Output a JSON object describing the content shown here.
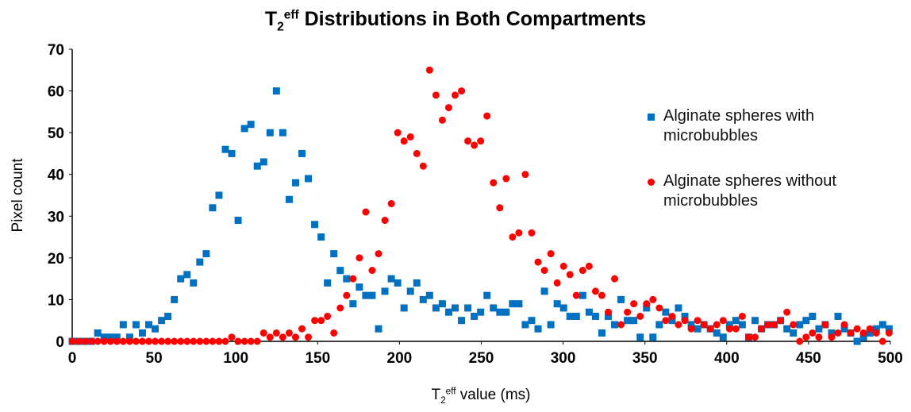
{
  "chart_data": {
    "type": "scatter",
    "title": [
      "T",
      "2",
      "eff",
      " Distributions in Both Compartments"
    ],
    "xlabel": [
      "T",
      "2",
      "eff",
      " value (ms)"
    ],
    "ylabel": "Pixel count",
    "xlim": [
      0,
      500
    ],
    "xticks": [
      0,
      50,
      100,
      150,
      200,
      250,
      300,
      350,
      400,
      450,
      500
    ],
    "ylim": [
      0,
      70
    ],
    "yticks": [
      0,
      10,
      20,
      30,
      40,
      50,
      60,
      70
    ],
    "grid": false,
    "legend": "upper right",
    "x": [
      0,
      3.9,
      7.8,
      11.7,
      15.6,
      19.5,
      23.4,
      27.3,
      31.2,
      35.1,
      39,
      42.9,
      46.8,
      50.7,
      54.6,
      58.5,
      62.4,
      66.3,
      70.2,
      74.1,
      78,
      81.9,
      85.8,
      89.7,
      93.6,
      97.5,
      101.4,
      105.3,
      109.2,
      113.1,
      117,
      120.9,
      124.8,
      128.7,
      132.6,
      136.5,
      140.4,
      144.3,
      148.2,
      152.1,
      156,
      159.9,
      163.8,
      167.7,
      171.6,
      175.5,
      179.4,
      183.3,
      187.2,
      191.1,
      195,
      198.9,
      202.8,
      206.7,
      210.6,
      214.5,
      218.4,
      222.3,
      226.2,
      230.1,
      234,
      237.9,
      241.8,
      245.7,
      249.6,
      253.5,
      257.4,
      261.3,
      265.2,
      269.1,
      273,
      276.9,
      280.8,
      284.7,
      288.6,
      292.5,
      296.4,
      300.3,
      304.2,
      308.1,
      312,
      315.9,
      319.8,
      323.7,
      327.6,
      331.5,
      335.4,
      339.3,
      343.2,
      347.1,
      351,
      354.9,
      358.8,
      362.7,
      366.6,
      370.5,
      374.4,
      378.3,
      382.2,
      386.1,
      390,
      393.9,
      397.8,
      401.7,
      405.6,
      409.5,
      413.4,
      417.3,
      421.2,
      425.1,
      429,
      432.9,
      436.8,
      440.7,
      444.6,
      448.5,
      452.4,
      456.3,
      460.2,
      464.1,
      468,
      471.9,
      475.8,
      479.7,
      483.6,
      487.5,
      491.4,
      495.3,
      499.2
    ],
    "series": [
      {
        "name": "Alginate spheres with microbubbles",
        "color": "#0070c0",
        "marker": "square",
        "values": [
          0,
          0,
          0,
          0,
          2,
          1,
          1,
          1,
          4,
          1,
          4,
          2,
          4,
          3,
          5,
          6,
          10,
          15,
          16,
          14,
          19,
          21,
          32,
          35,
          46,
          45,
          29,
          51,
          52,
          42,
          43,
          50,
          60,
          50,
          34,
          38,
          45,
          39,
          28,
          25,
          14,
          21,
          17,
          15,
          9,
          13,
          11,
          11,
          3,
          12,
          15,
          14,
          8,
          12,
          14,
          10,
          11,
          8,
          9,
          7,
          8,
          5,
          8,
          6,
          7,
          11,
          8,
          7,
          7,
          9,
          9,
          4,
          5,
          3,
          12,
          4,
          9,
          8,
          6,
          6,
          11,
          7,
          6,
          2,
          6,
          4,
          10,
          5,
          5,
          1,
          8,
          1,
          4,
          7,
          5,
          8,
          6,
          4,
          3,
          4,
          3,
          2,
          1,
          4,
          5,
          4,
          1,
          5,
          3,
          4,
          4,
          5,
          3,
          2,
          4,
          5,
          6,
          3,
          4,
          2,
          6,
          3,
          2,
          0,
          1,
          2,
          3,
          4,
          3
        ]
      },
      {
        "name": "Alginate spheres without microbubbles",
        "color": "#ff0000",
        "marker": "circle",
        "values": [
          0,
          0,
          0,
          0,
          0,
          0,
          0,
          0,
          0,
          0,
          0,
          0,
          0,
          0,
          0,
          0,
          0,
          0,
          0,
          0,
          0,
          0,
          0,
          0,
          0,
          1,
          0,
          0,
          0,
          0,
          2,
          1,
          2,
          1,
          2,
          1,
          3,
          1,
          5,
          5,
          6,
          2,
          8,
          11,
          15,
          20,
          31,
          17,
          21,
          29,
          33,
          50,
          48,
          49,
          45,
          42,
          65,
          59,
          53,
          56,
          59,
          60,
          48,
          47,
          48,
          54,
          38,
          32,
          39,
          25,
          26,
          40,
          26,
          19,
          17,
          21,
          14,
          18,
          16,
          11,
          17,
          18,
          12,
          11,
          7,
          15,
          4,
          7,
          9,
          6,
          9,
          10,
          8,
          5,
          6,
          4,
          5,
          3,
          5,
          4,
          3,
          4,
          5,
          3,
          3,
          6,
          1,
          1,
          3,
          4,
          4,
          5,
          7,
          4,
          0,
          1,
          2,
          1,
          4,
          1,
          2,
          4,
          2,
          3,
          2,
          3,
          2,
          0,
          2
        ]
      }
    ]
  }
}
